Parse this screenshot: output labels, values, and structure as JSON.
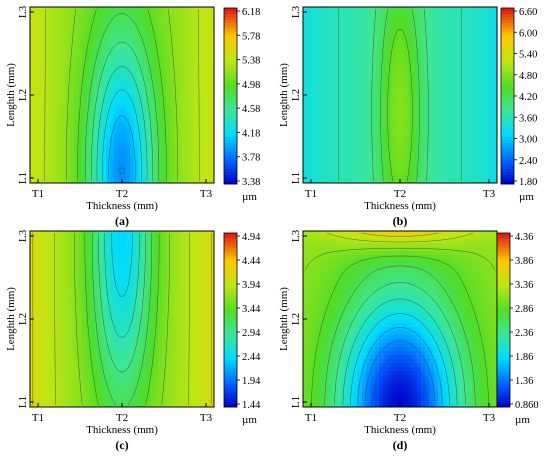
{
  "chart_data": [
    {
      "type": "heatmap",
      "panel_label": "(a)",
      "xlabel": "Thickness (mm)",
      "ylabel": "Lenghth (mm)",
      "x_ticks": [
        "T1",
        "T2",
        "T3"
      ],
      "y_ticks": [
        "L1",
        "L2",
        "L3"
      ],
      "colorbar_unit": "µm",
      "colorbar_ticks": [
        "6.18",
        "5.78",
        "5.38",
        "4.98",
        "4.58",
        "4.18",
        "3.78",
        "3.38"
      ],
      "value_range": [
        3.38,
        6.18
      ],
      "field": {
        "base": 5.1,
        "min_value": 3.9,
        "min_x": 0.5,
        "min_y": 0.07,
        "sigma_x": 0.13,
        "sigma_y": 0.55,
        "side_gradient": 0.3
      }
    },
    {
      "type": "heatmap",
      "panel_label": "(b)",
      "xlabel": "Thickness (mm)",
      "ylabel": "Lenghth (mm)",
      "x_ticks": [
        "T1",
        "T2",
        "T3"
      ],
      "y_ticks": [
        "L1",
        "L2",
        "L3"
      ],
      "colorbar_unit": "µm",
      "colorbar_ticks": [
        "6.60",
        "6.00",
        "5.40",
        "4.80",
        "4.20",
        "3.60",
        "3.00",
        "2.40",
        "1.80"
      ],
      "value_range": [
        1.8,
        6.6
      ],
      "field": {
        "base": 3.7,
        "peak_value": 4.8,
        "peak_x": 0.5,
        "peak_y": 0.4,
        "sigma_x": 0.08,
        "sigma_y": 0.6,
        "edge_min": 3.3
      }
    },
    {
      "type": "heatmap",
      "panel_label": "(c)",
      "xlabel": "Thickness (mm)",
      "ylabel": "Lenghth (mm)",
      "x_ticks": [
        "T1",
        "T2",
        "T3"
      ],
      "y_ticks": [
        "L1",
        "L2",
        "L3"
      ],
      "colorbar_unit": "µm",
      "colorbar_ticks": [
        "4.94",
        "4.44",
        "3.94",
        "3.44",
        "2.94",
        "2.44",
        "1.94",
        "1.44"
      ],
      "value_range": [
        1.44,
        4.94
      ],
      "field": {
        "base": 3.7,
        "min_value": 2.4,
        "min_x": 0.5,
        "min_y": 0.95,
        "sigma_x": 0.12,
        "sigma_y": 0.7,
        "edge_max": 4.1
      }
    },
    {
      "type": "heatmap",
      "panel_label": "(d)",
      "xlabel": "Thickness (mm)",
      "ylabel": "Lenghth (mm)",
      "x_ticks": [
        "T1",
        "T2",
        "T3"
      ],
      "y_ticks": [
        "L1",
        "L2",
        "L3"
      ],
      "colorbar_unit": "µm",
      "colorbar_ticks": [
        "4.36",
        "3.86",
        "3.36",
        "2.86",
        "2.36",
        "1.86",
        "1.36",
        "0.860"
      ],
      "value_range": [
        0.86,
        4.36
      ],
      "field": {
        "base": 3.0,
        "min_value": 1.0,
        "min_x": 0.5,
        "min_y": 0.0,
        "sigma_x": 0.22,
        "sigma_y": 0.45,
        "top_value": 3.9,
        "edge_max": 3.3
      }
    }
  ]
}
